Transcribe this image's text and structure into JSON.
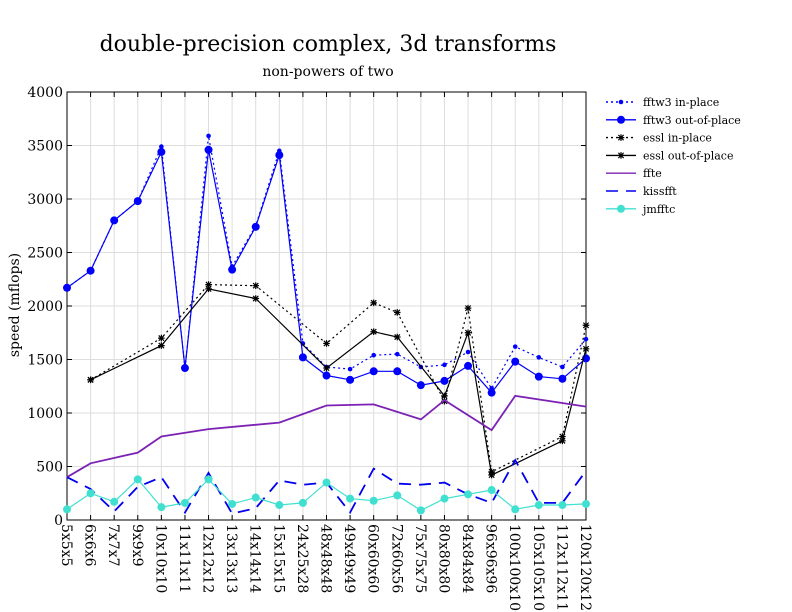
{
  "chart_data": {
    "type": "line",
    "title": "double-precision complex, 3d transforms",
    "subtitle": "non-powers of two",
    "xlabel": "",
    "ylabel": "speed (mflops)",
    "ylim": [
      0,
      4000
    ],
    "yticks": [
      0,
      500,
      1000,
      1500,
      2000,
      2500,
      3000,
      3500,
      4000
    ],
    "grid": true,
    "legend_position": "right",
    "categories": [
      "5x5x5",
      "6x6x6",
      "7x7x7",
      "9x9x9",
      "10x10x10",
      "11x11x11",
      "12x12x12",
      "13x13x13",
      "14x14x14",
      "15x15x15",
      "24x25x28",
      "48x48x48",
      "49x49x49",
      "60x60x60",
      "72x60x56",
      "75x75x75",
      "80x80x80",
      "84x84x84",
      "96x96x96",
      "100x100x100",
      "105x105x105",
      "112x112x112",
      "120x120x120"
    ],
    "series": [
      {
        "name": "fftw3 in-place",
        "color": "#0000ff",
        "dash": "2,3",
        "marker": "dot-small",
        "values": [
          2170,
          2330,
          2800,
          2980,
          3490,
          1410,
          3590,
          2370,
          2750,
          3450,
          1650,
          1430,
          1410,
          1540,
          1550,
          1430,
          1450,
          1570,
          1230,
          1620,
          1520,
          1430,
          1690
        ]
      },
      {
        "name": "fftw3 out-of-place",
        "color": "#0000ff",
        "dash": "",
        "marker": "dot-large",
        "values": [
          2170,
          2330,
          2800,
          2980,
          3440,
          1420,
          3460,
          2340,
          2740,
          3410,
          1520,
          1350,
          1310,
          1390,
          1390,
          1260,
          1300,
          1440,
          1190,
          1480,
          1340,
          1320,
          1510
        ]
      },
      {
        "name": "essl in-place",
        "color": "#000000",
        "dash": "2,3",
        "marker": "star",
        "values": [
          null,
          1310,
          null,
          null,
          1700,
          null,
          2200,
          null,
          2190,
          null,
          null,
          1650,
          null,
          2030,
          1940,
          null,
          1110,
          1980,
          450,
          null,
          null,
          780,
          1820
        ]
      },
      {
        "name": "essl out-of-place",
        "color": "#000000",
        "dash": "",
        "marker": "star",
        "values": [
          null,
          1310,
          null,
          null,
          1630,
          null,
          2160,
          null,
          2070,
          null,
          null,
          1420,
          null,
          1760,
          1710,
          null,
          1160,
          1750,
          420,
          null,
          null,
          740,
          1600
        ]
      },
      {
        "name": "ffte",
        "color": "#7b22b5",
        "dash": "",
        "marker": "none",
        "values": [
          400,
          530,
          null,
          630,
          780,
          null,
          850,
          null,
          null,
          910,
          null,
          1070,
          null,
          1080,
          null,
          940,
          1120,
          null,
          840,
          1160,
          null,
          null,
          1060
        ]
      },
      {
        "name": "kissfft",
        "color": "#0000ee",
        "dash": "12,8",
        "marker": "none",
        "values": [
          400,
          290,
          80,
          310,
          400,
          70,
          440,
          60,
          110,
          370,
          330,
          350,
          70,
          480,
          340,
          330,
          350,
          240,
          160,
          560,
          160,
          160,
          460
        ]
      },
      {
        "name": "jmfftc",
        "color": "#40e0d0",
        "dash": "",
        "marker": "dot-large",
        "values": [
          100,
          250,
          170,
          380,
          120,
          160,
          380,
          150,
          210,
          140,
          160,
          350,
          200,
          180,
          230,
          90,
          200,
          240,
          280,
          100,
          140,
          140,
          150
        ]
      }
    ]
  }
}
